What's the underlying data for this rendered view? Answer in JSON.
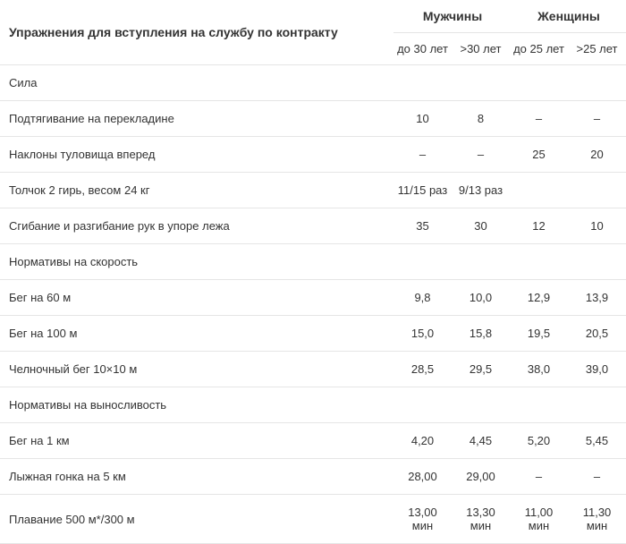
{
  "header": {
    "exercise_title": "Упражнения для вступления на службу по контракту",
    "male_group": "Мужчины",
    "female_group": "Женщины",
    "male_col1": "до 30 лет",
    "male_col2": ">30 лет",
    "female_col1": "до 25 лет",
    "female_col2": ">25 лет"
  },
  "sections": {
    "strength": "Сила",
    "speed": "Нормативы на скорость",
    "endurance": "Нормативы на выносливость"
  },
  "rows": {
    "pullups": {
      "name": "Подтягивание на перекладине",
      "m1": "10",
      "m2": "8",
      "f1": "–",
      "f2": "–"
    },
    "torso": {
      "name": "Наклоны туловища вперед",
      "m1": "–",
      "m2": "–",
      "f1": "25",
      "f2": "20"
    },
    "kettlebell": {
      "name": "Толчок 2 гирь, весом 24 кг",
      "m1": "11/15 раз",
      "m2": "9/13 раз",
      "f1": "",
      "f2": ""
    },
    "pushups": {
      "name": "Сгибание и разгибание рук в упоре лежа",
      "m1": "35",
      "m2": "30",
      "f1": "12",
      "f2": "10"
    },
    "run60": {
      "name": "Бег на 60 м",
      "m1": "9,8",
      "m2": "10,0",
      "f1": "12,9",
      "f2": "13,9"
    },
    "run100": {
      "name": "Бег на 100 м",
      "m1": "15,0",
      "m2": "15,8",
      "f1": "19,5",
      "f2": "20,5"
    },
    "shuttle": {
      "name": "Челночный бег 10×10 м",
      "m1": "28,5",
      "m2": "29,5",
      "f1": "38,0",
      "f2": "39,0"
    },
    "run1km": {
      "name": "Бег на 1 км",
      "m1": "4,20",
      "m2": "4,45",
      "f1": "5,20",
      "f2": "5,45"
    },
    "ski5km": {
      "name": "Лыжная гонка на 5 км",
      "m1": "28,00",
      "m2": "29,00",
      "f1": "–",
      "f2": "–"
    },
    "swim": {
      "name": "Плавание 500 м*/300 м",
      "m1": "13,00 мин",
      "m2": "13,30 мин",
      "f1": "11,00 мин",
      "f2": "11,30 мин"
    }
  }
}
